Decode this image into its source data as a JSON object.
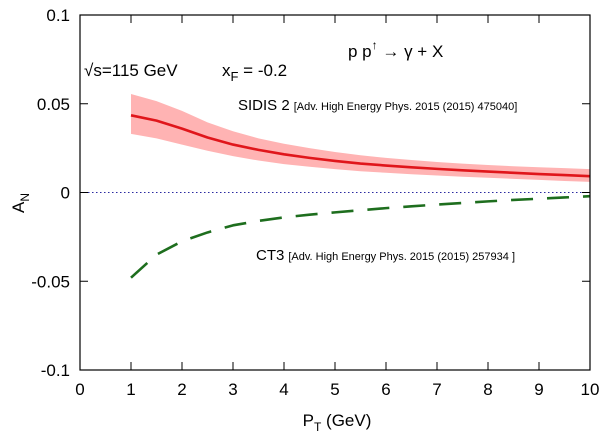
{
  "chart_data": {
    "type": "line",
    "xlabel": "P",
    "xlabel_sub": "T",
    "xlabel_unit": " (GeV)",
    "ylabel": "A",
    "ylabel_sub": "N",
    "xlim": [
      0,
      10
    ],
    "ylim": [
      -0.1,
      0.1
    ],
    "xticks": [
      0,
      1,
      2,
      3,
      4,
      5,
      6,
      7,
      8,
      9,
      10
    ],
    "yticks": [
      -0.1,
      -0.05,
      0,
      0.05,
      0.1
    ],
    "ytick_labels": [
      "-0.1",
      "-0.05",
      "0",
      "0.05",
      "0.1"
    ],
    "grid": false,
    "zero_line": {
      "y": 0,
      "color": "#2a2aa0",
      "style": "dotted"
    },
    "annotations": {
      "sqrt_s": "√s=115 GeV",
      "xf_main": "x",
      "xf_sub": "F",
      "xf_value": " = -0.2",
      "process": "p p↑ → γ + X",
      "process_pp": "p p",
      "process_arrow": "↑",
      "process_rest": " → γ + X"
    },
    "series": [
      {
        "name": "SIDIS 2",
        "ref": "[Adv. High Energy Phys. 2015 (2015) 475040]",
        "color": "#e0161b",
        "band_color": "#ffb3b3",
        "style": "solid",
        "x": [
          1.0,
          1.5,
          2.0,
          2.5,
          3.0,
          3.5,
          4.0,
          4.5,
          5.0,
          5.5,
          6.0,
          6.5,
          7.0,
          7.5,
          8.0,
          8.5,
          9.0,
          9.5,
          10.0
        ],
        "y": [
          0.0435,
          0.0405,
          0.036,
          0.031,
          0.027,
          0.024,
          0.0215,
          0.0195,
          0.0178,
          0.0163,
          0.0152,
          0.0142,
          0.0133,
          0.0125,
          0.0118,
          0.0111,
          0.0104,
          0.0098,
          0.0092
        ],
        "upper": [
          0.0555,
          0.0515,
          0.046,
          0.0395,
          0.0345,
          0.0305,
          0.0275,
          0.025,
          0.0228,
          0.021,
          0.0195,
          0.0183,
          0.0172,
          0.0163,
          0.0155,
          0.0148,
          0.0142,
          0.0137,
          0.0132
        ],
        "lower": [
          0.033,
          0.0305,
          0.027,
          0.0235,
          0.0205,
          0.018,
          0.016,
          0.0145,
          0.0132,
          0.012,
          0.0111,
          0.0103,
          0.0096,
          0.0089,
          0.0083,
          0.0077,
          0.0071,
          0.0065,
          0.006
        ]
      },
      {
        "name": "CT3",
        "ref": "[Adv. High Energy Phys. 2015 (2015) 257934 ]",
        "color": "#1e6e1e",
        "style": "dashed",
        "x": [
          1.0,
          1.5,
          2.0,
          2.5,
          3.0,
          3.5,
          4.0,
          4.5,
          5.0,
          5.5,
          6.0,
          6.5,
          7.0,
          7.5,
          8.0,
          8.5,
          9.0,
          9.5,
          10.0
        ],
        "y": [
          -0.048,
          -0.035,
          -0.0275,
          -0.0225,
          -0.0185,
          -0.016,
          -0.014,
          -0.0125,
          -0.0112,
          -0.01,
          -0.0088,
          -0.0078,
          -0.0068,
          -0.0059,
          -0.005,
          -0.0042,
          -0.0035,
          -0.0028,
          -0.0021
        ]
      }
    ]
  }
}
